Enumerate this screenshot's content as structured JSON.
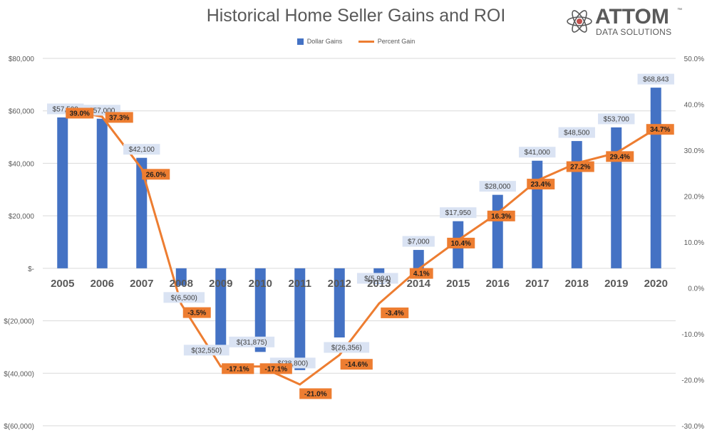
{
  "chart_data": {
    "type": "bar",
    "title": "Historical Home Seller Gains and ROI",
    "categories": [
      "2005",
      "2006",
      "2007",
      "2008",
      "2009",
      "2010",
      "2011",
      "2012",
      "2013",
      "2014",
      "2015",
      "2016",
      "2017",
      "2018",
      "2019",
      "2020"
    ],
    "series": [
      {
        "name": "Dollar Gains",
        "type": "bar",
        "axis": "left",
        "color": "#4472C4",
        "values": [
          57500,
          57000,
          42100,
          -6500,
          -32550,
          -31875,
          -38800,
          -26356,
          -5984,
          7000,
          17950,
          28000,
          41000,
          48500,
          53700,
          68843
        ],
        "labels": [
          "$57,500",
          "$57,000",
          "$42,100",
          "$(6,500)",
          "$(32,550)",
          "$(31,875)",
          "$(38,800)",
          "$(26,356)",
          "$(5,984)",
          "$7,000",
          "$17,950",
          "$28,000",
          "$41,000",
          "$48,500",
          "$53,700",
          "$68,843"
        ]
      },
      {
        "name": "Percent Gain",
        "type": "line",
        "axis": "right",
        "color": "#ED7D31",
        "values": [
          39.0,
          37.3,
          26.0,
          -3.5,
          -17.1,
          -17.1,
          -21.0,
          -14.6,
          -3.4,
          4.1,
          10.4,
          16.3,
          23.4,
          27.2,
          29.4,
          34.7
        ],
        "labels": [
          "39.0%",
          "37.3%",
          "26.0%",
          "-3.5%",
          "-17.1%",
          "-17.1%",
          "-21.0%",
          "-14.6%",
          "-3.4%",
          "4.1%",
          "10.4%",
          "16.3%",
          "23.4%",
          "27.2%",
          "29.4%",
          "34.7%"
        ]
      }
    ],
    "y_left": {
      "ylim": [
        -60000,
        80000
      ],
      "ticks": [
        80000,
        60000,
        40000,
        20000,
        0,
        -20000,
        -40000,
        -60000
      ],
      "tick_labels": [
        "$80,000",
        "$60,000",
        "$40,000",
        "$20,000",
        "$-",
        "$(20,000)",
        "$(40,000)",
        "$(60,000)"
      ]
    },
    "y_right": {
      "ylim": [
        -30,
        50
      ],
      "ticks": [
        50,
        40,
        30,
        20,
        10,
        0,
        -10,
        -20,
        -30
      ],
      "tick_labels": [
        "50.0%",
        "40.0%",
        "30.0%",
        "20.0%",
        "10.0%",
        "0.0%",
        "-10.0%",
        "-20.0%",
        "-30.0%"
      ]
    },
    "grid": true,
    "legend": "top-center"
  },
  "logo": {
    "name": "ATTOM",
    "tm": "™",
    "tagline": "DATA SOLUTIONS"
  }
}
